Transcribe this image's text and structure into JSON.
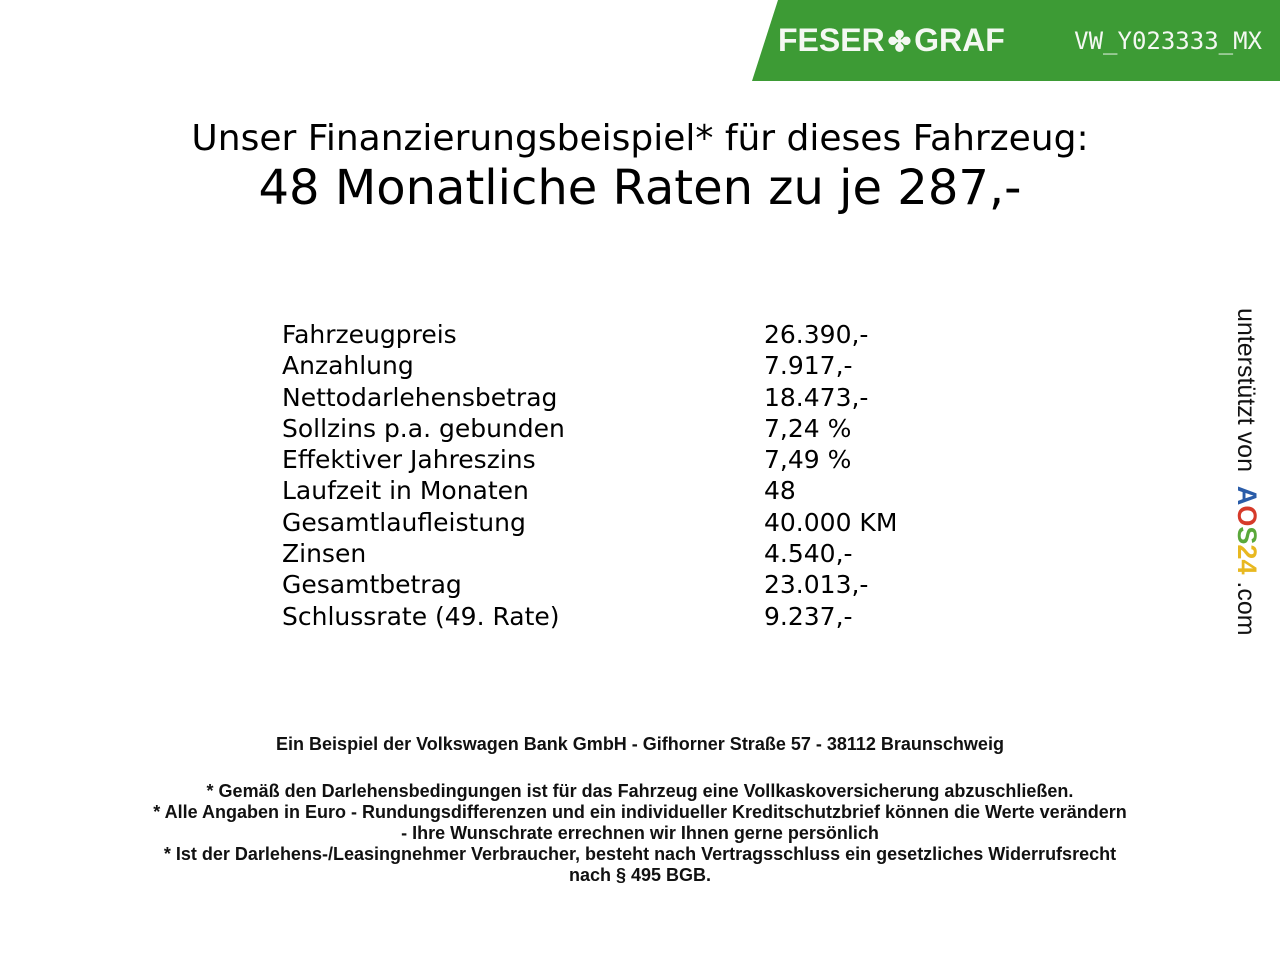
{
  "header": {
    "logo_left": "FESER",
    "logo_right": "GRAF",
    "overlay_code": "VW_Y023333_MX",
    "brand_color": "#3d9b35"
  },
  "title": {
    "line1": "Unser Finanzierungsbeispiel* für dieses Fahrzeug:",
    "line2": "48 Monatliche Raten zu je 287,-"
  },
  "rows": [
    {
      "label": "Fahrzeugpreis",
      "value": "26.390,-"
    },
    {
      "label": "Anzahlung",
      "value": "7.917,-"
    },
    {
      "label": "Nettodarlehensbetrag",
      "value": "18.473,-"
    },
    {
      "label": "Sollzins p.a. gebunden",
      "value": "7,24 %"
    },
    {
      "label": "Effektiver Jahreszins",
      "value": "7,49 %"
    },
    {
      "label": "Laufzeit in Monaten",
      "value": "48"
    },
    {
      "label": "Gesamtlaufleistung",
      "value": "40.000 KM"
    },
    {
      "label": "Zinsen",
      "value": "4.540,-"
    },
    {
      "label": "Gesamtbetrag",
      "value": "23.013,-"
    },
    {
      "label": "Schlussrate (49. Rate)",
      "value": "9.237,-"
    }
  ],
  "side": {
    "text": "unterstützt von",
    "brand": [
      "A",
      "O",
      "S",
      "24"
    ],
    "suffix": ".com"
  },
  "footer": {
    "bank": "Ein Beispiel der Volkswagen Bank GmbH - Gifhorner Straße 57 - 38112 Braunschweig",
    "note1": "* Gemäß den Darlehensbedingungen ist für das Fahrzeug eine Vollkaskoversicherung abzuschließen.",
    "note2a": "* Alle Angaben in Euro - Rundungsdifferenzen und ein individueller Kreditschutzbrief können die Werte verändern",
    "note2b": "- Ihre Wunschrate errechnen wir Ihnen gerne persönlich",
    "note3a": "* Ist der Darlehens-/Leasingnehmer Verbraucher, besteht nach Vertragsschluss ein gesetzliches Widerrufsrecht",
    "note3b": "nach § 495 BGB."
  }
}
